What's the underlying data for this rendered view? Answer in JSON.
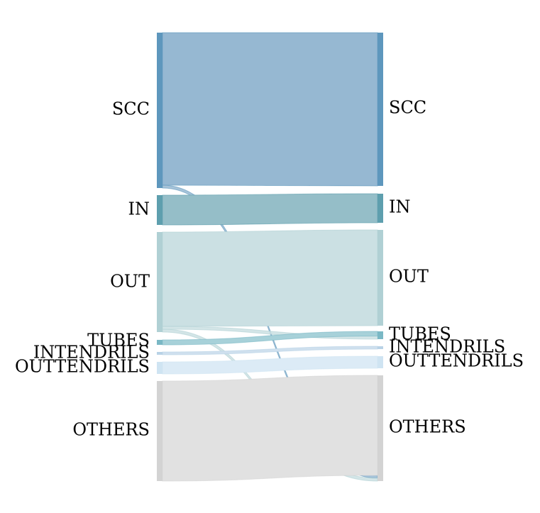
{
  "chart_data": {
    "type": "sankey",
    "left_nodes": [
      {
        "id": "SCC",
        "label": "SCC",
        "color": "#5e97bd",
        "fill": "#96b8d2"
      },
      {
        "id": "IN",
        "label": "IN",
        "color": "#5e9fae",
        "fill": "#95bec8"
      },
      {
        "id": "OUT",
        "label": "OUT",
        "color": "#b0d0d4",
        "fill": "#cbe0e3"
      },
      {
        "id": "TUBES",
        "label": "TUBES",
        "color": "#7ab8c5",
        "fill": "#a7d1d9"
      },
      {
        "id": "INTENDRILS",
        "label": "INTENDRILS",
        "color": "#b8d2e6",
        "fill": "#cfe0ee"
      },
      {
        "id": "OUTTENDRILS",
        "label": "OUTTENDRILS",
        "color": "#cfe4f2",
        "fill": "#dcebf6"
      },
      {
        "id": "OTHERS",
        "label": "OTHERS",
        "color": "#d3d3d3",
        "fill": "#e1e1e1"
      }
    ],
    "right_nodes": [
      {
        "id": "SCC",
        "label": "SCC",
        "color": "#5e97bd"
      },
      {
        "id": "IN",
        "label": "IN",
        "color": "#5e9fae"
      },
      {
        "id": "OUT",
        "label": "OUT",
        "color": "#b0d0d4"
      },
      {
        "id": "TUBES",
        "label": "TUBES",
        "color": "#7ab8c5"
      },
      {
        "id": "INTENDRILS",
        "label": "INTENDRILS",
        "color": "#b8d2e6"
      },
      {
        "id": "OUTTENDRILS",
        "label": "OUTTENDRILS",
        "color": "#cfe4f2"
      },
      {
        "id": "OTHERS",
        "label": "OTHERS",
        "color": "#d3d3d3"
      }
    ],
    "links": [
      {
        "source": "SCC",
        "target": "SCC",
        "value": 215
      },
      {
        "source": "SCC",
        "target": "OTHERS",
        "value": 4
      },
      {
        "source": "IN",
        "target": "IN",
        "value": 40
      },
      {
        "source": "OUT",
        "target": "OUT",
        "value": 132
      },
      {
        "source": "OUT",
        "target": "TUBES",
        "value": 4
      },
      {
        "source": "OUT",
        "target": "OTHERS",
        "value": 4
      },
      {
        "source": "TUBES",
        "target": "TUBES",
        "value": 6
      },
      {
        "source": "INTENDRILS",
        "target": "INTENDRILS",
        "value": 4
      },
      {
        "source": "OUTTENDRILS",
        "target": "OUTTENDRILS",
        "value": 16
      },
      {
        "source": "OTHERS",
        "target": "OTHERS",
        "value": 140
      }
    ]
  }
}
